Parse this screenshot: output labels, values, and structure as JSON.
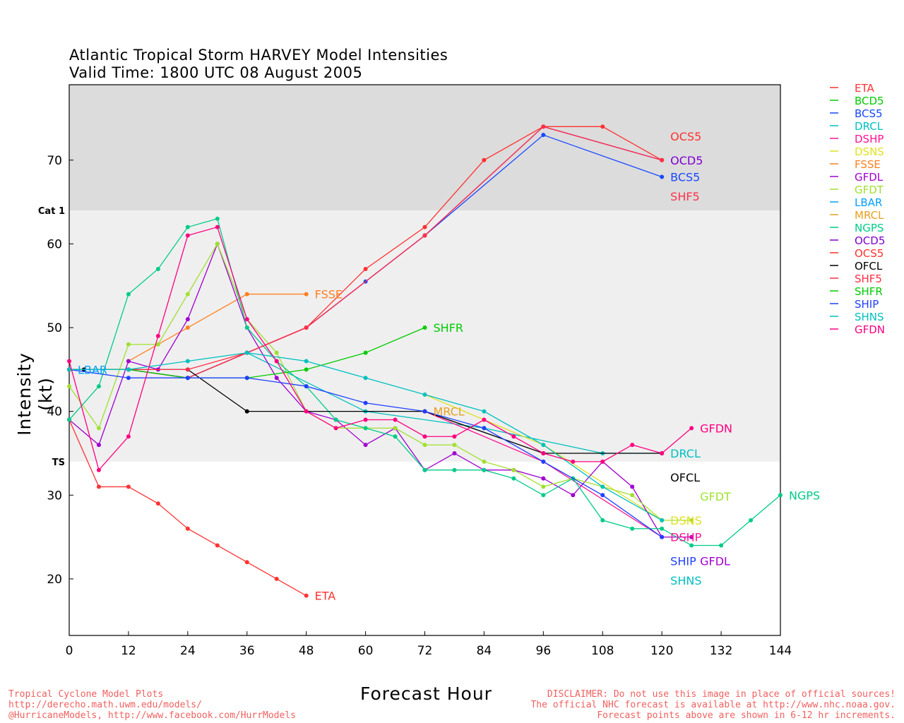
{
  "chart_data": {
    "type": "line",
    "title": "Atlantic Tropical Storm HARVEY Model Intensities",
    "subtitle": "Valid Time: 1800 UTC 08 August 2005",
    "xlabel": "Forecast Hour",
    "ylabel": "Intensity (kt)",
    "xlim": [
      0,
      144
    ],
    "ylim": [
      13.25,
      79
    ],
    "xticks": [
      0,
      12,
      24,
      36,
      48,
      60,
      72,
      84,
      96,
      108,
      120,
      132,
      144
    ],
    "yticks": [
      20,
      30,
      40,
      50,
      60,
      70
    ],
    "bands": [
      {
        "label": "Cat 1",
        "from": 64,
        "to": 79,
        "color": "#dcdcdc"
      },
      {
        "label": "TS",
        "from": 34,
        "to": 64,
        "color": "#efefef"
      }
    ],
    "legend_position": "right",
    "series": [
      {
        "name": "ETA",
        "color": "#ff3333",
        "x": [
          0,
          6,
          12,
          18,
          24,
          30,
          36,
          42,
          48
        ],
        "y": [
          39,
          31,
          31,
          29,
          26,
          24,
          22,
          20,
          18
        ]
      },
      {
        "name": "BCD5",
        "color": "#00cc00",
        "x": [],
        "y": []
      },
      {
        "name": "BCS5",
        "color": "#1848ff",
        "x": [
          0,
          12,
          24,
          36,
          48,
          60,
          72,
          96,
          120
        ],
        "y": [
          45,
          45,
          44,
          47,
          50,
          55.5,
          61,
          73,
          68
        ]
      },
      {
        "name": "DRCL",
        "color": "#00c0c0",
        "x": [
          36,
          60,
          84,
          108,
          120
        ],
        "y": [
          47,
          40,
          38,
          35,
          35
        ]
      },
      {
        "name": "DSHP",
        "color": "#ff1493",
        "x": [
          72,
          96,
          120
        ],
        "y": [
          40,
          34,
          25
        ]
      },
      {
        "name": "DSNS",
        "color": "#e0e020",
        "x": [
          72,
          96,
          120
        ],
        "y": [
          42,
          36,
          27
        ]
      },
      {
        "name": "FSSE",
        "color": "#ff8020",
        "x": [
          12,
          24,
          36,
          48
        ],
        "y": [
          46,
          50,
          54,
          54
        ]
      },
      {
        "name": "GFDL",
        "color": "#a000d0",
        "x": [
          0,
          6,
          12,
          18,
          24,
          30,
          36,
          42,
          48,
          54,
          60,
          66,
          72,
          78,
          84,
          90,
          96,
          102,
          108,
          114,
          120,
          126
        ],
        "y": [
          39,
          36,
          46,
          45,
          51,
          60,
          50,
          44,
          40,
          39,
          36,
          38,
          33,
          35,
          33,
          33,
          32,
          30,
          34,
          31,
          25,
          25
        ]
      },
      {
        "name": "GFDT",
        "color": "#a0e030",
        "x": [
          0,
          6,
          12,
          18,
          24,
          30,
          36,
          42,
          48,
          54,
          60,
          66,
          72,
          78,
          84,
          90,
          96,
          102,
          108,
          114,
          120,
          126
        ],
        "y": [
          43,
          38,
          48,
          48,
          54,
          60,
          51,
          47,
          40,
          38,
          38,
          38,
          36,
          36,
          34,
          33,
          31,
          32,
          31,
          30,
          27,
          27
        ]
      },
      {
        "name": "LBAR",
        "color": "#00a0ff",
        "x": [
          0
        ],
        "y": [
          45
        ]
      },
      {
        "name": "MRCL",
        "color": "#e8a020",
        "x": [
          72
        ],
        "y": [
          40
        ]
      },
      {
        "name": "NGPS",
        "color": "#00cc88",
        "x": [
          0,
          6,
          12,
          18,
          24,
          30,
          36,
          42,
          48,
          54,
          60,
          66,
          72,
          78,
          84,
          90,
          96,
          102,
          108,
          114,
          120,
          126,
          132,
          138,
          144
        ],
        "y": [
          39,
          43,
          54,
          57,
          62,
          63,
          50,
          46,
          43,
          39,
          38,
          37,
          33,
          33,
          33,
          32,
          30,
          32,
          27,
          26,
          26,
          24,
          24,
          27,
          30
        ]
      },
      {
        "name": "OCD5",
        "color": "#8000d0",
        "x": [
          0,
          12,
          24,
          36,
          48,
          72,
          96,
          120
        ],
        "y": [
          45,
          45,
          44,
          47,
          50,
          61,
          74,
          70
        ]
      },
      {
        "name": "OCS5",
        "color": "#ff3030",
        "x": [
          0,
          12,
          24,
          36,
          48,
          60,
          72,
          84,
          96,
          108,
          120
        ],
        "y": [
          45,
          45,
          44,
          47,
          50,
          57,
          62,
          70,
          74,
          74,
          70
        ]
      },
      {
        "name": "OFCL",
        "color": "#000000",
        "x": [
          0,
          3,
          12,
          24,
          36,
          72,
          96,
          120
        ],
        "y": [
          45,
          45,
          45,
          45,
          40,
          40,
          35,
          35
        ]
      },
      {
        "name": "SHF5",
        "color": "#ff3048",
        "x": [
          0,
          12,
          24,
          36,
          48,
          72,
          96,
          120
        ],
        "y": [
          45,
          45,
          45,
          47,
          50,
          61,
          74,
          70
        ]
      },
      {
        "name": "SHFR",
        "color": "#00cc00",
        "x": [
          0,
          12,
          24,
          36,
          48,
          60,
          72
        ],
        "y": [
          45,
          45,
          44,
          44,
          45,
          47,
          50
        ]
      },
      {
        "name": "SHIP",
        "color": "#2040ff",
        "x": [
          0,
          12,
          24,
          36,
          48,
          60,
          72,
          84,
          96,
          108,
          120
        ],
        "y": [
          45,
          44,
          44,
          44,
          43,
          41,
          40,
          38,
          34,
          30,
          25
        ]
      },
      {
        "name": "SHNS",
        "color": "#00c0c0",
        "x": [
          0,
          12,
          24,
          36,
          48,
          60,
          72,
          84,
          96,
          108,
          120
        ],
        "y": [
          45,
          45,
          46,
          47,
          46,
          44,
          42,
          40,
          36,
          31,
          27
        ]
      },
      {
        "name": "GFDN",
        "color": "#ff0080",
        "x": [
          0,
          6,
          12,
          18,
          24,
          30,
          36,
          42,
          48,
          54,
          60,
          66,
          72,
          78,
          84,
          90,
          96,
          102,
          108,
          114,
          120,
          126
        ],
        "y": [
          46,
          33,
          37,
          49,
          61,
          62,
          51,
          46,
          40,
          38,
          39,
          39,
          37,
          37,
          39,
          37,
          35,
          34,
          34,
          36,
          35,
          38
        ]
      }
    ]
  },
  "footer": {
    "left": [
      "Tropical Cyclone Model Plots",
      "http://derecho.math.uwm.edu/models/",
      "@HurricaneModels, http://www.facebook.com/HurrModels"
    ],
    "right": [
      "DISCLAIMER: Do not use this image in place of official sources!",
      "The official NHC forecast is available at http://www.nhc.noaa.gov.",
      "Forecast points above are shown in 6-12 hr increments."
    ]
  }
}
